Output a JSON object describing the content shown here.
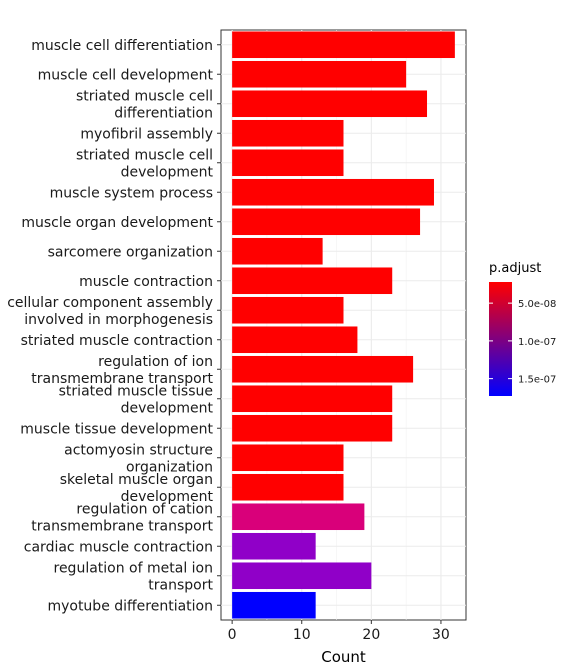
{
  "chart_data": {
    "type": "bar",
    "orientation": "horizontal",
    "categories": [
      "muscle cell differentiation",
      "muscle cell development",
      "striated muscle cell\ndifferentiation",
      "myofibril assembly",
      "striated muscle cell\ndevelopment",
      "muscle system process",
      "muscle organ development",
      "sarcomere organization",
      "muscle contraction",
      "cellular component assembly\ninvolved in morphogenesis",
      "striated muscle contraction",
      "regulation of ion\ntransmembrane transport",
      "striated muscle tissue\ndevelopment",
      "muscle tissue development",
      "actomyosin structure\norganization",
      "skeletal muscle organ\ndevelopment",
      "regulation of cation\ntransmembrane transport",
      "cardiac muscle contraction",
      "regulation of metal ion\ntransport",
      "myotube differentiation"
    ],
    "values": [
      32,
      25,
      28,
      16,
      16,
      29,
      27,
      13,
      23,
      16,
      18,
      26,
      23,
      23,
      16,
      16,
      19,
      12,
      20,
      12
    ],
    "bar_colors": [
      "#FF0000",
      "#FF0000",
      "#FF0000",
      "#FF0000",
      "#FF0000",
      "#FF0000",
      "#FF0000",
      "#FF0000",
      "#FF0000",
      "#FF0000",
      "#FF0000",
      "#FF0000",
      "#FF0000",
      "#FF0000",
      "#FF0000",
      "#FF0000",
      "#D9007A",
      "#9000C8",
      "#9000C8",
      "#0000FF"
    ],
    "xlabel": "Count",
    "ylabel": "",
    "xlim": [
      -1.6,
      33.6
    ],
    "xticks": [
      0,
      10,
      20,
      30
    ],
    "grid": true,
    "legend": {
      "title": "p.adjust",
      "placement": "right",
      "type": "colorbar",
      "range": [
        2.2e-08,
        1.73e-07
      ],
      "ticks": [
        {
          "value": 5e-08,
          "label": "5.0e-08"
        },
        {
          "value": 1e-07,
          "label": "1.0e-07"
        },
        {
          "value": 1.5e-07,
          "label": "1.5e-07"
        }
      ],
      "color_low": "#FF0000",
      "color_high": "#0000FF"
    }
  }
}
